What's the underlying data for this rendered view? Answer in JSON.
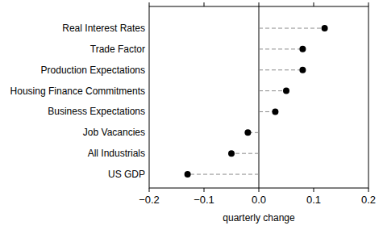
{
  "chart_data": {
    "type": "dot",
    "orientation": "horizontal",
    "x_label": "quarterly change",
    "categories": [
      "Real Interest Rates",
      "Trade Factor",
      "Production Expectations",
      "Housing Finance Commitments",
      "Business Expectations",
      "Job Vacancies",
      "All Industrials",
      "US GDP"
    ],
    "values": [
      0.12,
      0.08,
      0.08,
      0.05,
      0.03,
      -0.02,
      -0.05,
      -0.13
    ],
    "color": "#000000",
    "marker": "circle",
    "line_style": "dashed",
    "xlim": [
      -0.2,
      0.2
    ],
    "xticks": [
      {
        "value": -0.2,
        "label": "−0.2"
      },
      {
        "value": -0.1,
        "label": "−0.1"
      },
      {
        "value": 0,
        "label": "0.0"
      },
      0.1,
      0.2
    ],
    "grid": false
  }
}
